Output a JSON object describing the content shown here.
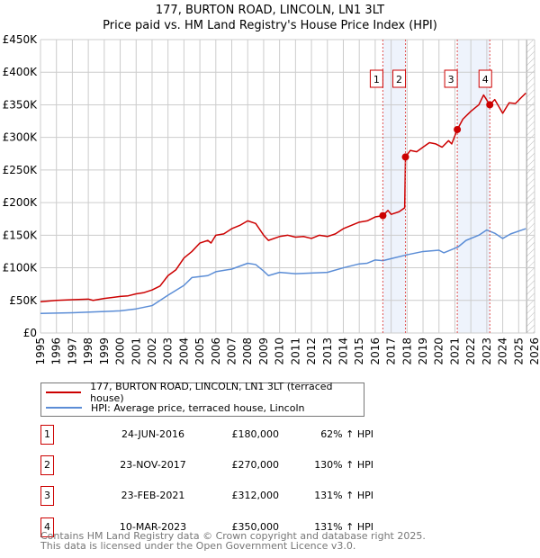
{
  "chart_data": {
    "type": "line",
    "title": "177, BURTON ROAD, LINCOLN, LN1 3LT",
    "subtitle": "Price paid vs. HM Land Registry's House Price Index (HPI)",
    "xlim": [
      1995,
      2026
    ],
    "ylim": [
      0,
      450000
    ],
    "x_ticks": [
      "1995",
      "1996",
      "1997",
      "1998",
      "1999",
      "2000",
      "2001",
      "2002",
      "2003",
      "2004",
      "2005",
      "2006",
      "2007",
      "2008",
      "2009",
      "2010",
      "2011",
      "2012",
      "2013",
      "2014",
      "2015",
      "2016",
      "2017",
      "2018",
      "2019",
      "2020",
      "2021",
      "2022",
      "2023",
      "2024",
      "2025",
      "2026"
    ],
    "y_ticks": [
      {
        "v": 0,
        "label": "£0"
      },
      {
        "v": 50000,
        "label": "£50K"
      },
      {
        "v": 100000,
        "label": "£100K"
      },
      {
        "v": 150000,
        "label": "£150K"
      },
      {
        "v": 200000,
        "label": "£200K"
      },
      {
        "v": 250000,
        "label": "£250K"
      },
      {
        "v": 300000,
        "label": "£300K"
      },
      {
        "v": 350000,
        "label": "£350K"
      },
      {
        "v": 400000,
        "label": "£400K"
      },
      {
        "v": 450000,
        "label": "£450K"
      }
    ],
    "grid": true,
    "forecast_from": 2025.5,
    "series": [
      {
        "name": "177, BURTON ROAD, LINCOLN, LN1 3LT (terraced house)",
        "color": "#cc0000",
        "x": [
          1995,
          1996,
          1997,
          1998,
          1998.3,
          1999,
          2000,
          2000.5,
          2001,
          2001.5,
          2002,
          2002.5,
          2003,
          2003.5,
          2004,
          2004.5,
          2005,
          2005.5,
          2005.7,
          2006,
          2006.5,
          2007,
          2007.5,
          2008,
          2008.5,
          2009,
          2009.3,
          2010,
          2010.5,
          2011,
          2011.5,
          2012,
          2012.5,
          2013,
          2013.5,
          2014,
          2014.5,
          2015,
          2015.5,
          2016,
          2016.48,
          2016.8,
          2017,
          2017.5,
          2017.85,
          2017.9,
          2018.2,
          2018.6,
          2019,
          2019.4,
          2019.8,
          2020.2,
          2020.6,
          2020.8,
          2021.15,
          2021.5,
          2022,
          2022.5,
          2022.8,
          2023.19,
          2023.5,
          2024,
          2024.4,
          2024.8,
          2025.2,
          2025.45
        ],
        "y": [
          48000,
          50000,
          51000,
          52000,
          50000,
          53000,
          56000,
          57000,
          60000,
          62000,
          66000,
          72000,
          88000,
          97000,
          115000,
          125000,
          138000,
          142000,
          138000,
          150000,
          152000,
          160000,
          165000,
          172000,
          168000,
          150000,
          142000,
          148000,
          150000,
          147000,
          148000,
          145000,
          150000,
          148000,
          152000,
          160000,
          165000,
          170000,
          172000,
          178000,
          180000,
          188000,
          182000,
          186000,
          192000,
          270000,
          280000,
          278000,
          285000,
          292000,
          290000,
          285000,
          295000,
          290000,
          312000,
          328000,
          340000,
          350000,
          365000,
          350000,
          358000,
          337000,
          353000,
          352000,
          362000,
          368000
        ]
      },
      {
        "name": "HPI: Average price, terraced house, Lincoln",
        "color": "#5b8dd6",
        "x": [
          1995,
          1997,
          1999,
          2000,
          2001,
          2002,
          2003,
          2004,
          2004.5,
          2005.5,
          2006,
          2007,
          2008,
          2008.5,
          2009,
          2009.3,
          2010,
          2011,
          2012,
          2013,
          2014,
          2015,
          2015.5,
          2016,
          2016.48,
          2017,
          2018,
          2019,
          2020,
          2020.3,
          2020.8,
          2021.2,
          2021.7,
          2022.5,
          2023,
          2023.5,
          2024,
          2024.5,
          2025.45
        ],
        "y": [
          30000,
          31000,
          33000,
          34000,
          37000,
          42000,
          58000,
          73000,
          85000,
          88000,
          94000,
          98000,
          107000,
          105000,
          95000,
          88000,
          93000,
          91000,
          92000,
          93000,
          100000,
          106000,
          107000,
          112000,
          111000,
          114000,
          120000,
          125000,
          127000,
          123000,
          128000,
          132000,
          142000,
          150000,
          158000,
          153000,
          145000,
          152000,
          160000
        ]
      }
    ],
    "transactions": [
      {
        "id": "1",
        "x": 2016.48,
        "price": 180000,
        "date": "24-JUN-2016",
        "price_label": "£180,000",
        "hpi": "62% ↑ HPI"
      },
      {
        "id": "2",
        "x": 2017.9,
        "price": 270000,
        "date": "23-NOV-2017",
        "price_label": "£270,000",
        "hpi": "130% ↑ HPI"
      },
      {
        "id": "3",
        "x": 2021.15,
        "price": 312000,
        "date": "23-FEB-2021",
        "price_label": "£312,000",
        "hpi": "131% ↑ HPI"
      },
      {
        "id": "4",
        "x": 2023.19,
        "price": 350000,
        "date": "10-MAR-2023",
        "price_label": "£350,000",
        "hpi": "131% ↑ HPI"
      }
    ],
    "shaded_ranges": [
      [
        2016.48,
        2017.9
      ],
      [
        2021.15,
        2023.19
      ]
    ]
  },
  "footer": {
    "line1": "Contains HM Land Registry data © Crown copyright and database right 2025.",
    "line2": "This data is licensed under the Open Government Licence v3.0."
  }
}
